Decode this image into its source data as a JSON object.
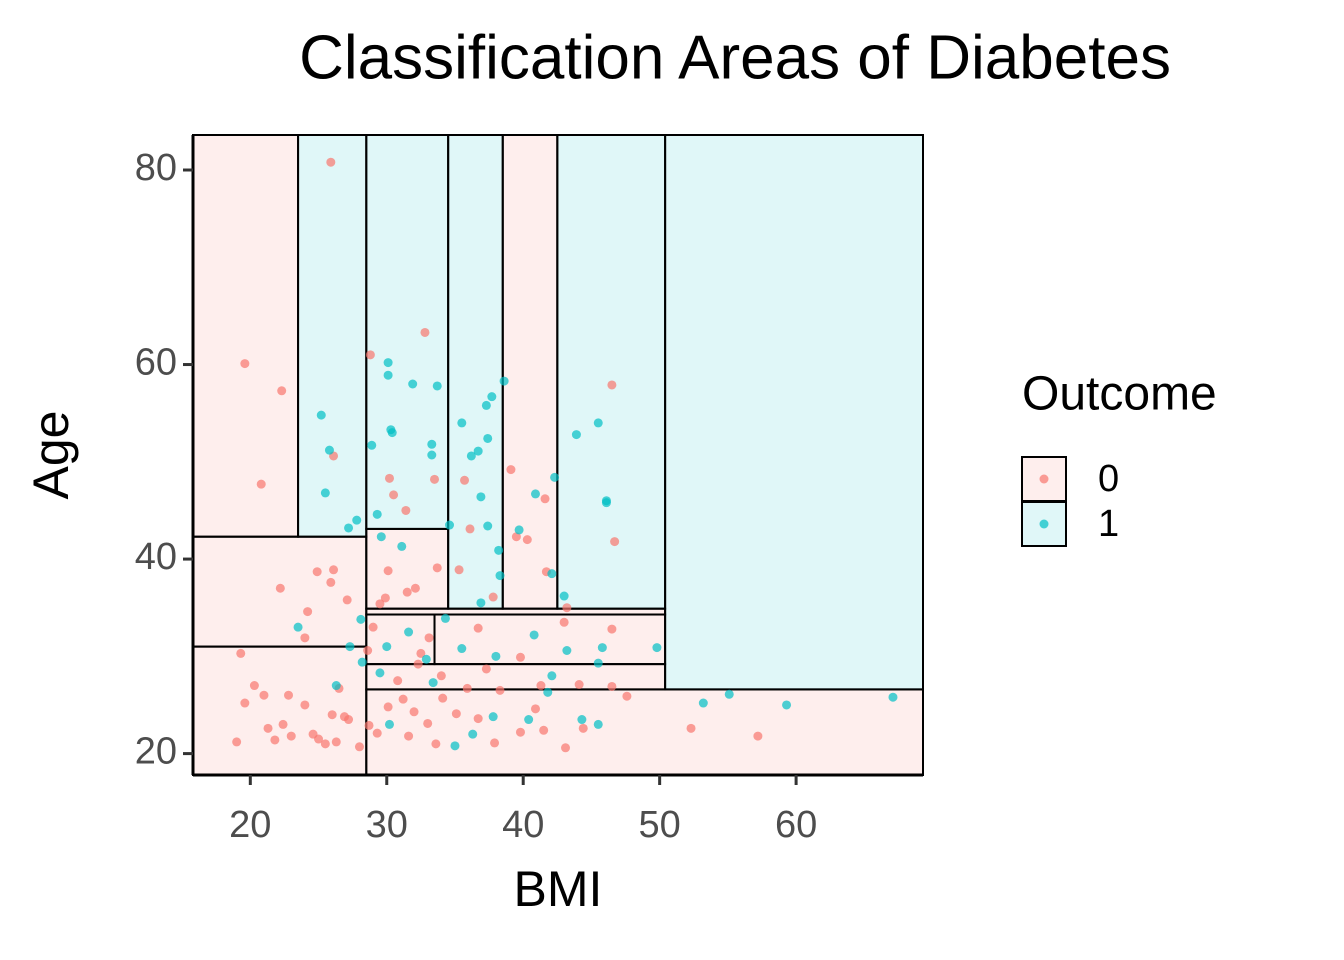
{
  "chart_data": {
    "type": "scatter",
    "title": "Classification Areas of Diabetes",
    "x_label": "BMI",
    "y_label": "Age",
    "xlim": [
      15.8,
      69.3
    ],
    "ylim": [
      17.8,
      83.6
    ],
    "xticks": [
      20,
      30,
      40,
      50,
      60
    ],
    "yticks": [
      20,
      40,
      60,
      80
    ],
    "legend_title": "Outcome",
    "legend_position": "right",
    "series": [
      {
        "name": "0",
        "color": "#F8766D",
        "regions": [
          {
            "xmin": 15.8,
            "xmax": 23.5,
            "ymin": 42.3,
            "ymax": 83.6
          },
          {
            "xmin": 15.8,
            "xmax": 28.5,
            "ymin": 31.0,
            "ymax": 42.3
          },
          {
            "xmin": 15.8,
            "xmax": 28.5,
            "ymin": 17.8,
            "ymax": 31.0
          },
          {
            "xmin": 28.5,
            "xmax": 69.3,
            "ymin": 17.8,
            "ymax": 26.6
          },
          {
            "xmin": 38.5,
            "xmax": 42.5,
            "ymin": 34.9,
            "ymax": 83.6
          },
          {
            "xmin": 28.5,
            "xmax": 34.5,
            "ymin": 34.9,
            "ymax": 43.1
          },
          {
            "xmin": 28.5,
            "xmax": 50.4,
            "ymin": 34.3,
            "ymax": 34.9
          },
          {
            "xmin": 28.5,
            "xmax": 33.5,
            "ymin": 29.2,
            "ymax": 34.3
          },
          {
            "xmin": 33.5,
            "xmax": 50.4,
            "ymin": 29.2,
            "ymax": 34.3
          },
          {
            "xmin": 28.5,
            "xmax": 50.4,
            "ymin": 26.6,
            "ymax": 29.2
          }
        ],
        "x": [
          25.9,
          19.6,
          22.3,
          20.8,
          26.1,
          28.8,
          32.8,
          33.5,
          35.7,
          39.1,
          41.6,
          46.5,
          46.7,
          41.7,
          39.5,
          40.3,
          32.1,
          30.1,
          33.7,
          35.3,
          36.1,
          31.4,
          30.5,
          29.9,
          26.1,
          24.9,
          25.9,
          24.2,
          22.2,
          24,
          27.1,
          19.3,
          20.3,
          21,
          22.8,
          24,
          26,
          27.2,
          28.7,
          25,
          25.5,
          26.3,
          24.6,
          23,
          21.8,
          19,
          19.6,
          21.3,
          22.4,
          26.9,
          28,
          30.1,
          31.2,
          32,
          33,
          34.1,
          35.1,
          36.7,
          37.9,
          39.8,
          41.5,
          43.1,
          44.4,
          46.5,
          47.6,
          52.3,
          57.2,
          37.3,
          39.8,
          41.3,
          44.1,
          46.5,
          43,
          36.7,
          33.1,
          32.5,
          34,
          30.8,
          32.3,
          29.5,
          31.5,
          37.8,
          43.2,
          30.2,
          29.3,
          31.6,
          33.6,
          35.9,
          38.3,
          40.9,
          28.6,
          26.5,
          29
        ],
        "y": [
          80.8,
          60.1,
          57.3,
          47.7,
          50.6,
          61,
          63.3,
          48.2,
          48.1,
          49.2,
          46.2,
          57.9,
          41.8,
          38.7,
          42.3,
          42,
          37,
          38.8,
          39.1,
          38.9,
          43.1,
          45,
          46.6,
          36,
          38.9,
          38.7,
          37.6,
          34.6,
          37,
          31.9,
          35.8,
          30.3,
          27,
          26,
          26,
          25,
          24,
          23.5,
          22.9,
          21.5,
          21,
          21.2,
          22,
          21.8,
          21.4,
          21.2,
          25.2,
          22.6,
          23,
          23.8,
          20.7,
          24.8,
          25.6,
          24.3,
          23.1,
          25.7,
          24.1,
          23.6,
          21.1,
          22.2,
          22.4,
          20.6,
          22.6,
          26.9,
          25.9,
          22.6,
          21.8,
          28.7,
          29.9,
          27,
          27.1,
          32.8,
          33.5,
          32.9,
          31.9,
          30.3,
          28,
          27.5,
          29.2,
          35.4,
          36.6,
          36.1,
          35,
          48.3,
          22.1,
          21.8,
          21,
          26.7,
          26.5,
          24.6,
          30.6,
          26.7,
          33
        ]
      },
      {
        "name": "1",
        "color": "#00BFC4",
        "regions": [
          {
            "xmin": 23.5,
            "xmax": 28.5,
            "ymin": 42.3,
            "ymax": 83.6
          },
          {
            "xmin": 50.4,
            "xmax": 69.3,
            "ymin": 26.6,
            "ymax": 83.6
          },
          {
            "xmin": 28.5,
            "xmax": 34.5,
            "ymin": 43.1,
            "ymax": 83.6
          },
          {
            "xmin": 34.5,
            "xmax": 38.5,
            "ymin": 34.9,
            "ymax": 83.6
          },
          {
            "xmin": 42.5,
            "xmax": 50.4,
            "ymin": 34.9,
            "ymax": 83.6
          }
        ],
        "x": [
          25.2,
          25.8,
          25.5,
          27.2,
          27.8,
          28.9,
          29.3,
          30.1,
          30.1,
          31.9,
          33.7,
          30.3,
          30.4,
          33.3,
          33.3,
          34.6,
          35.5,
          36.2,
          36.7,
          37.3,
          37.7,
          37.4,
          38.6,
          39.7,
          36.9,
          37.4,
          38.2,
          38.3,
          40.9,
          42.1,
          42.3,
          43.9,
          45.5,
          46.1,
          46.1,
          28.1,
          29.6,
          31.1,
          31.6,
          32.9,
          34.3,
          35.5,
          36.9,
          38,
          40.8,
          42.1,
          43.2,
          43,
          45.5,
          45.8,
          49.8,
          53.2,
          55.1,
          59.3,
          67.1,
          23.5,
          26.3,
          27.3,
          28.2,
          29.5,
          30.2,
          33.4,
          35,
          36.3,
          37.8,
          40.4,
          44.3,
          45.5,
          41.8,
          30
        ],
        "y": [
          54.8,
          51.2,
          46.8,
          43.2,
          44,
          51.7,
          44.6,
          60.2,
          58.9,
          58,
          57.8,
          53.3,
          53,
          51.8,
          50.7,
          43.5,
          54,
          50.6,
          51.1,
          55.8,
          56.7,
          52.4,
          58.3,
          43,
          46.4,
          43.4,
          40.9,
          38.3,
          46.7,
          38.5,
          48.4,
          52.8,
          54,
          46,
          45.8,
          33.8,
          42.3,
          41.3,
          32.5,
          29.7,
          33.9,
          30.8,
          35.5,
          30,
          32.2,
          28,
          30.6,
          36.2,
          29.3,
          30.9,
          30.9,
          25.2,
          26.1,
          25,
          25.8,
          33,
          27,
          31,
          29.4,
          28.3,
          23,
          27.3,
          20.8,
          22,
          23.8,
          23.5,
          23.5,
          23,
          26.3,
          31
        ]
      }
    ]
  }
}
